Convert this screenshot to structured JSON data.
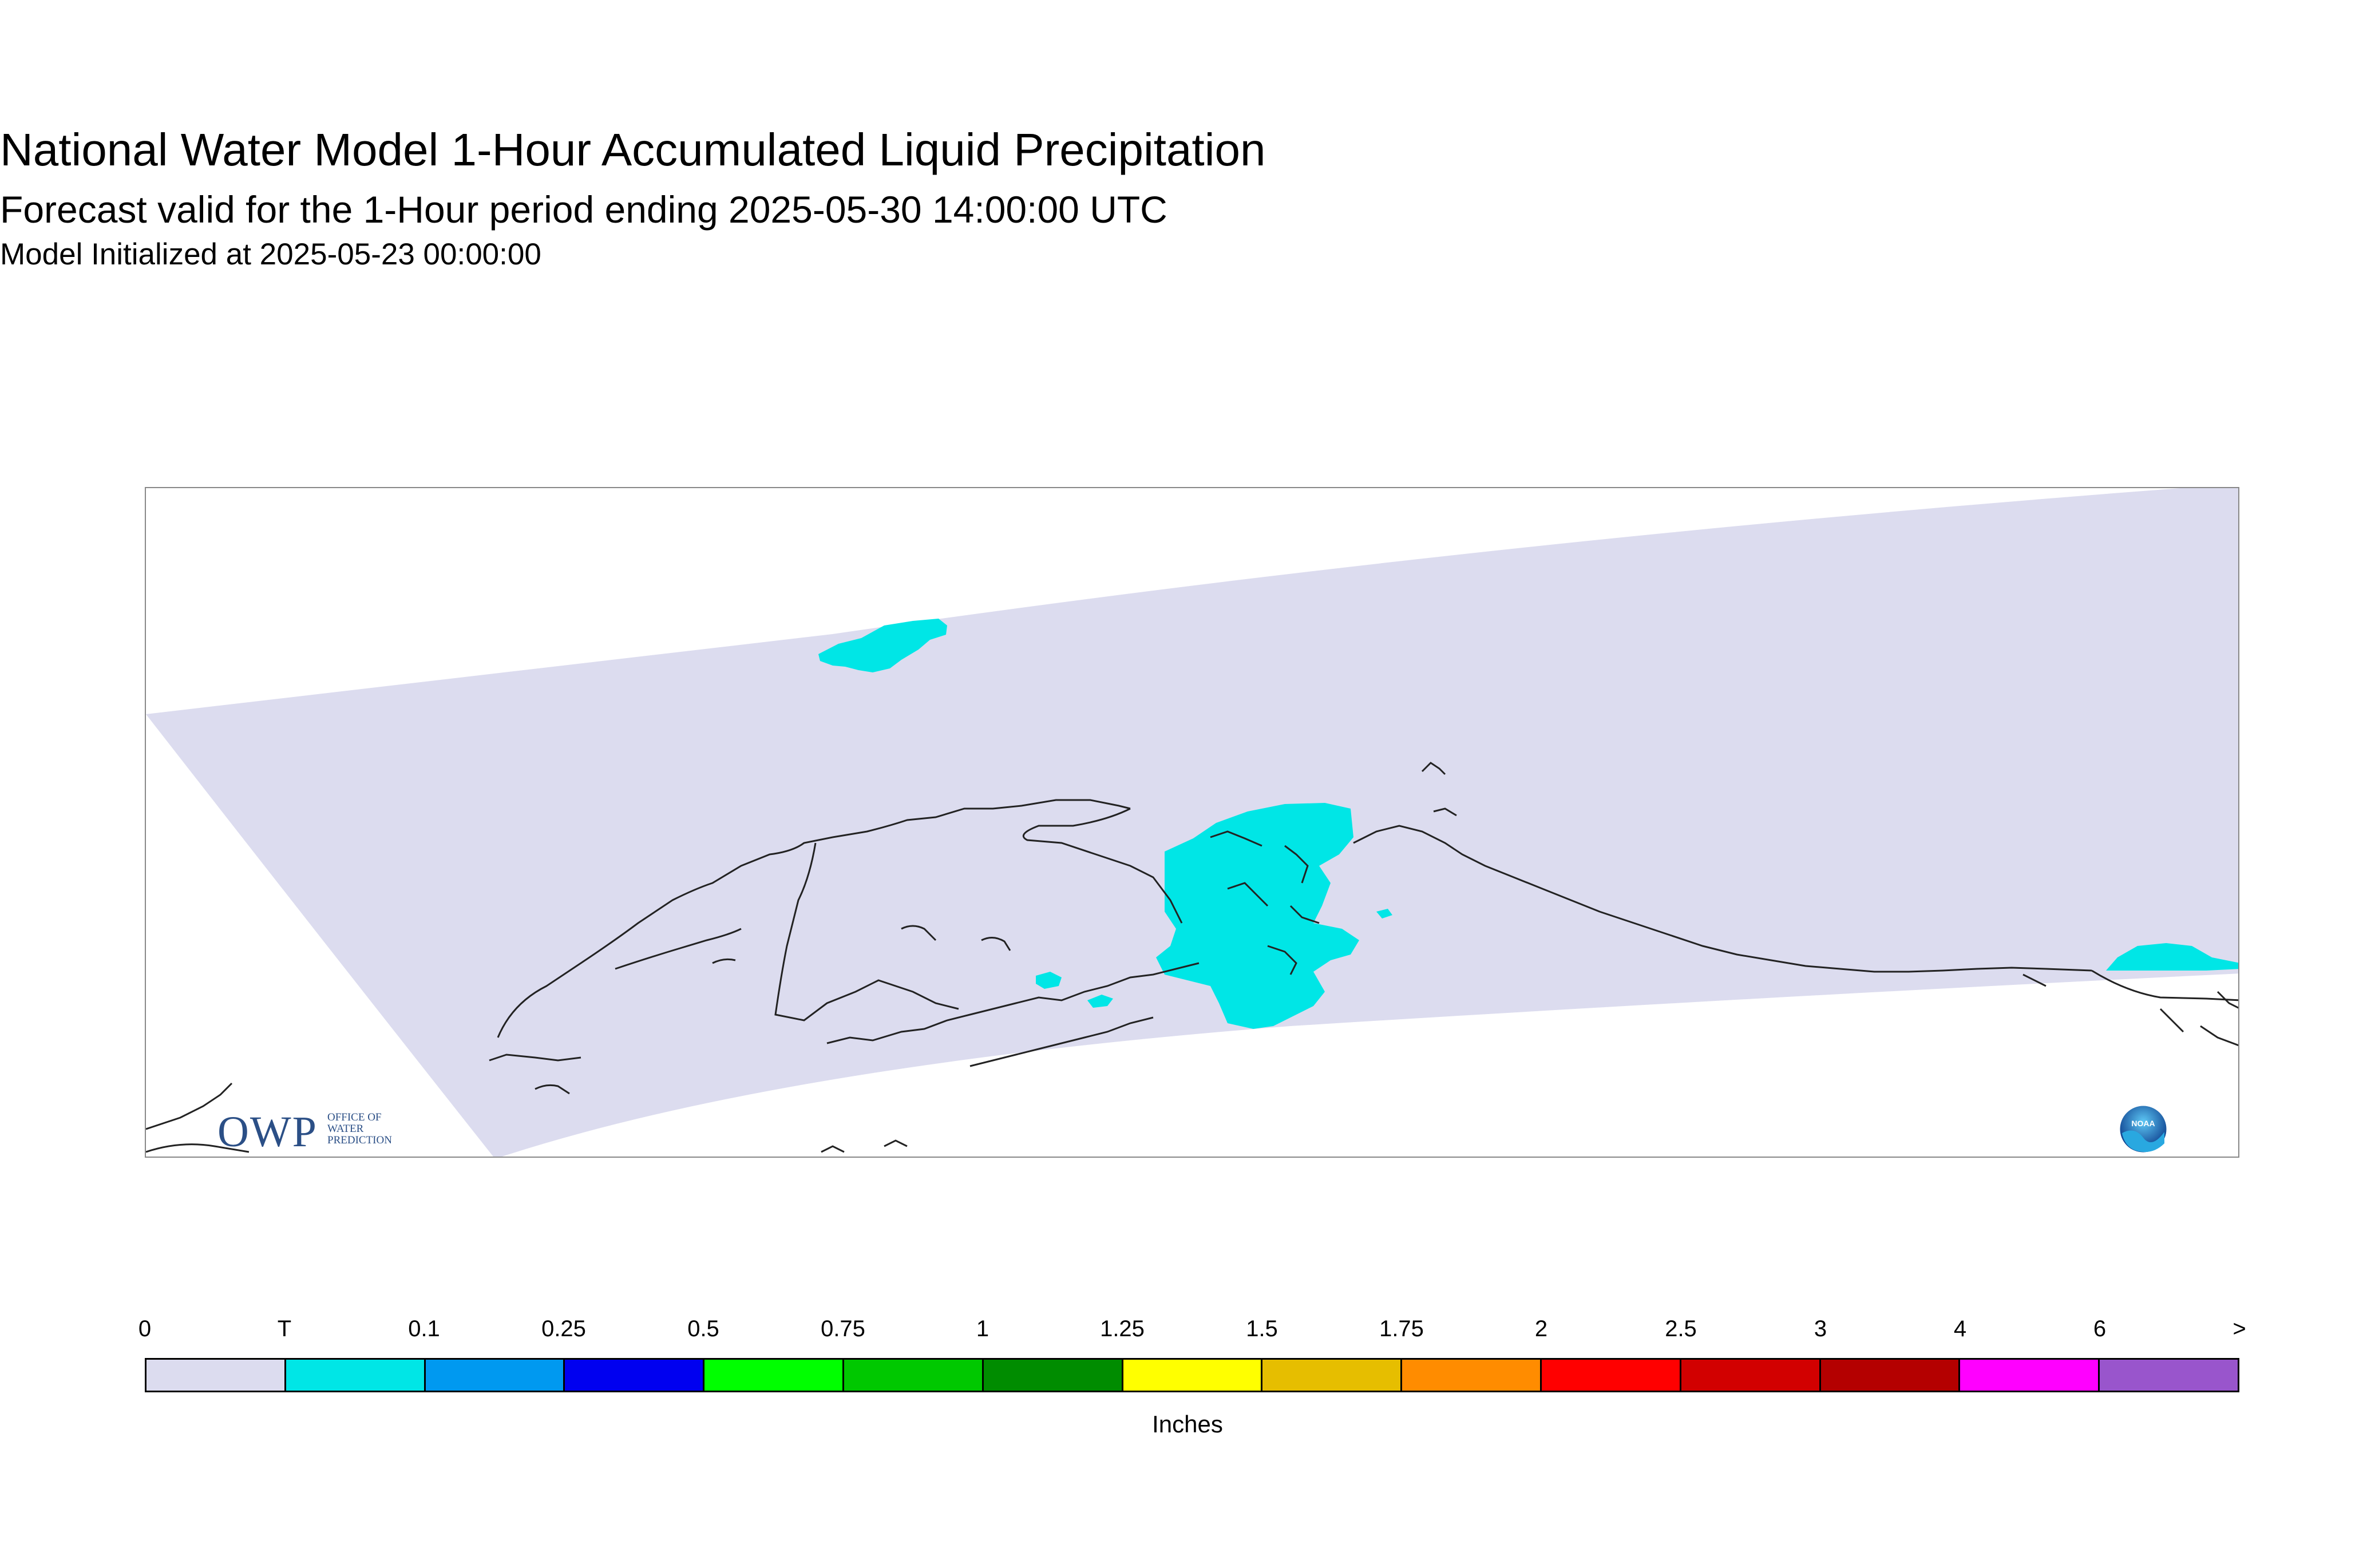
{
  "header": {
    "title": "National Water Model 1-Hour Accumulated Liquid Precipitation",
    "subtitle": "Forecast valid for the 1-Hour period ending 2025-05-30 14:00:00 UTC",
    "initialized": "Model Initialized at 2025-05-23 00:00:00"
  },
  "map": {
    "region_fill_color": "#dcdcef",
    "precip_fill_color": "#00e6e6",
    "coastline_color": "#222222"
  },
  "logos": {
    "owp": {
      "letters": "OWP",
      "line1": "OFFICE OF",
      "line2": "WATER",
      "line3": "PREDICTION"
    },
    "noaa": {
      "text": "NOAA"
    }
  },
  "legend": {
    "labels": [
      "0",
      "T",
      "0.1",
      "0.25",
      "0.5",
      "0.75",
      "1",
      "1.25",
      "1.5",
      "1.75",
      "2",
      "2.5",
      "3",
      "4",
      "6",
      ">"
    ],
    "colors": [
      "#dcdcef",
      "#00e6e6",
      "#0099f0",
      "#0000f0",
      "#00ff00",
      "#00c800",
      "#008c00",
      "#ffff00",
      "#e6be00",
      "#ff8c00",
      "#ff0000",
      "#d20000",
      "#b40000",
      "#ff00ff",
      "#9955cc"
    ],
    "units": "Inches"
  }
}
